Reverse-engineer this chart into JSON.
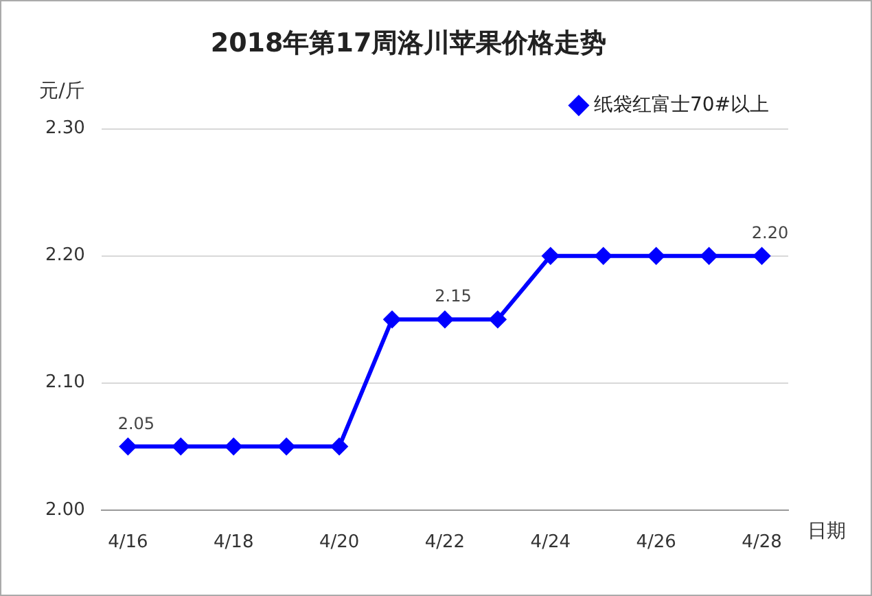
{
  "chart_data": {
    "type": "line",
    "title": "2018年第17周洛川苹果价格走势",
    "ylabel": "元/斤",
    "xlabel": "日期",
    "categories": [
      "4/16",
      null,
      "4/18",
      null,
      "4/20",
      null,
      "4/22",
      null,
      "4/24",
      null,
      "4/26",
      null,
      "4/28"
    ],
    "series": [
      {
        "name": "纸袋红富士70#以上",
        "color": "#0000ff",
        "values": [
          2.05,
          2.05,
          2.05,
          2.05,
          2.05,
          2.15,
          2.15,
          2.15,
          2.2,
          2.2,
          2.2,
          2.2,
          2.2
        ],
        "value_labels": [
          "2.05",
          null,
          null,
          null,
          null,
          null,
          "2.15",
          null,
          null,
          null,
          null,
          null,
          "2.20"
        ]
      }
    ],
    "ylim": [
      2.0,
      2.3
    ],
    "yticks": [
      {
        "value": 2.0,
        "label": "2.00"
      },
      {
        "value": 2.1,
        "label": "2.10"
      },
      {
        "value": 2.2,
        "label": "2.20"
      },
      {
        "value": 2.3,
        "label": "2.30"
      }
    ],
    "grid": "y",
    "legend": "top right",
    "marker": "diamond",
    "line_style": "solid"
  }
}
